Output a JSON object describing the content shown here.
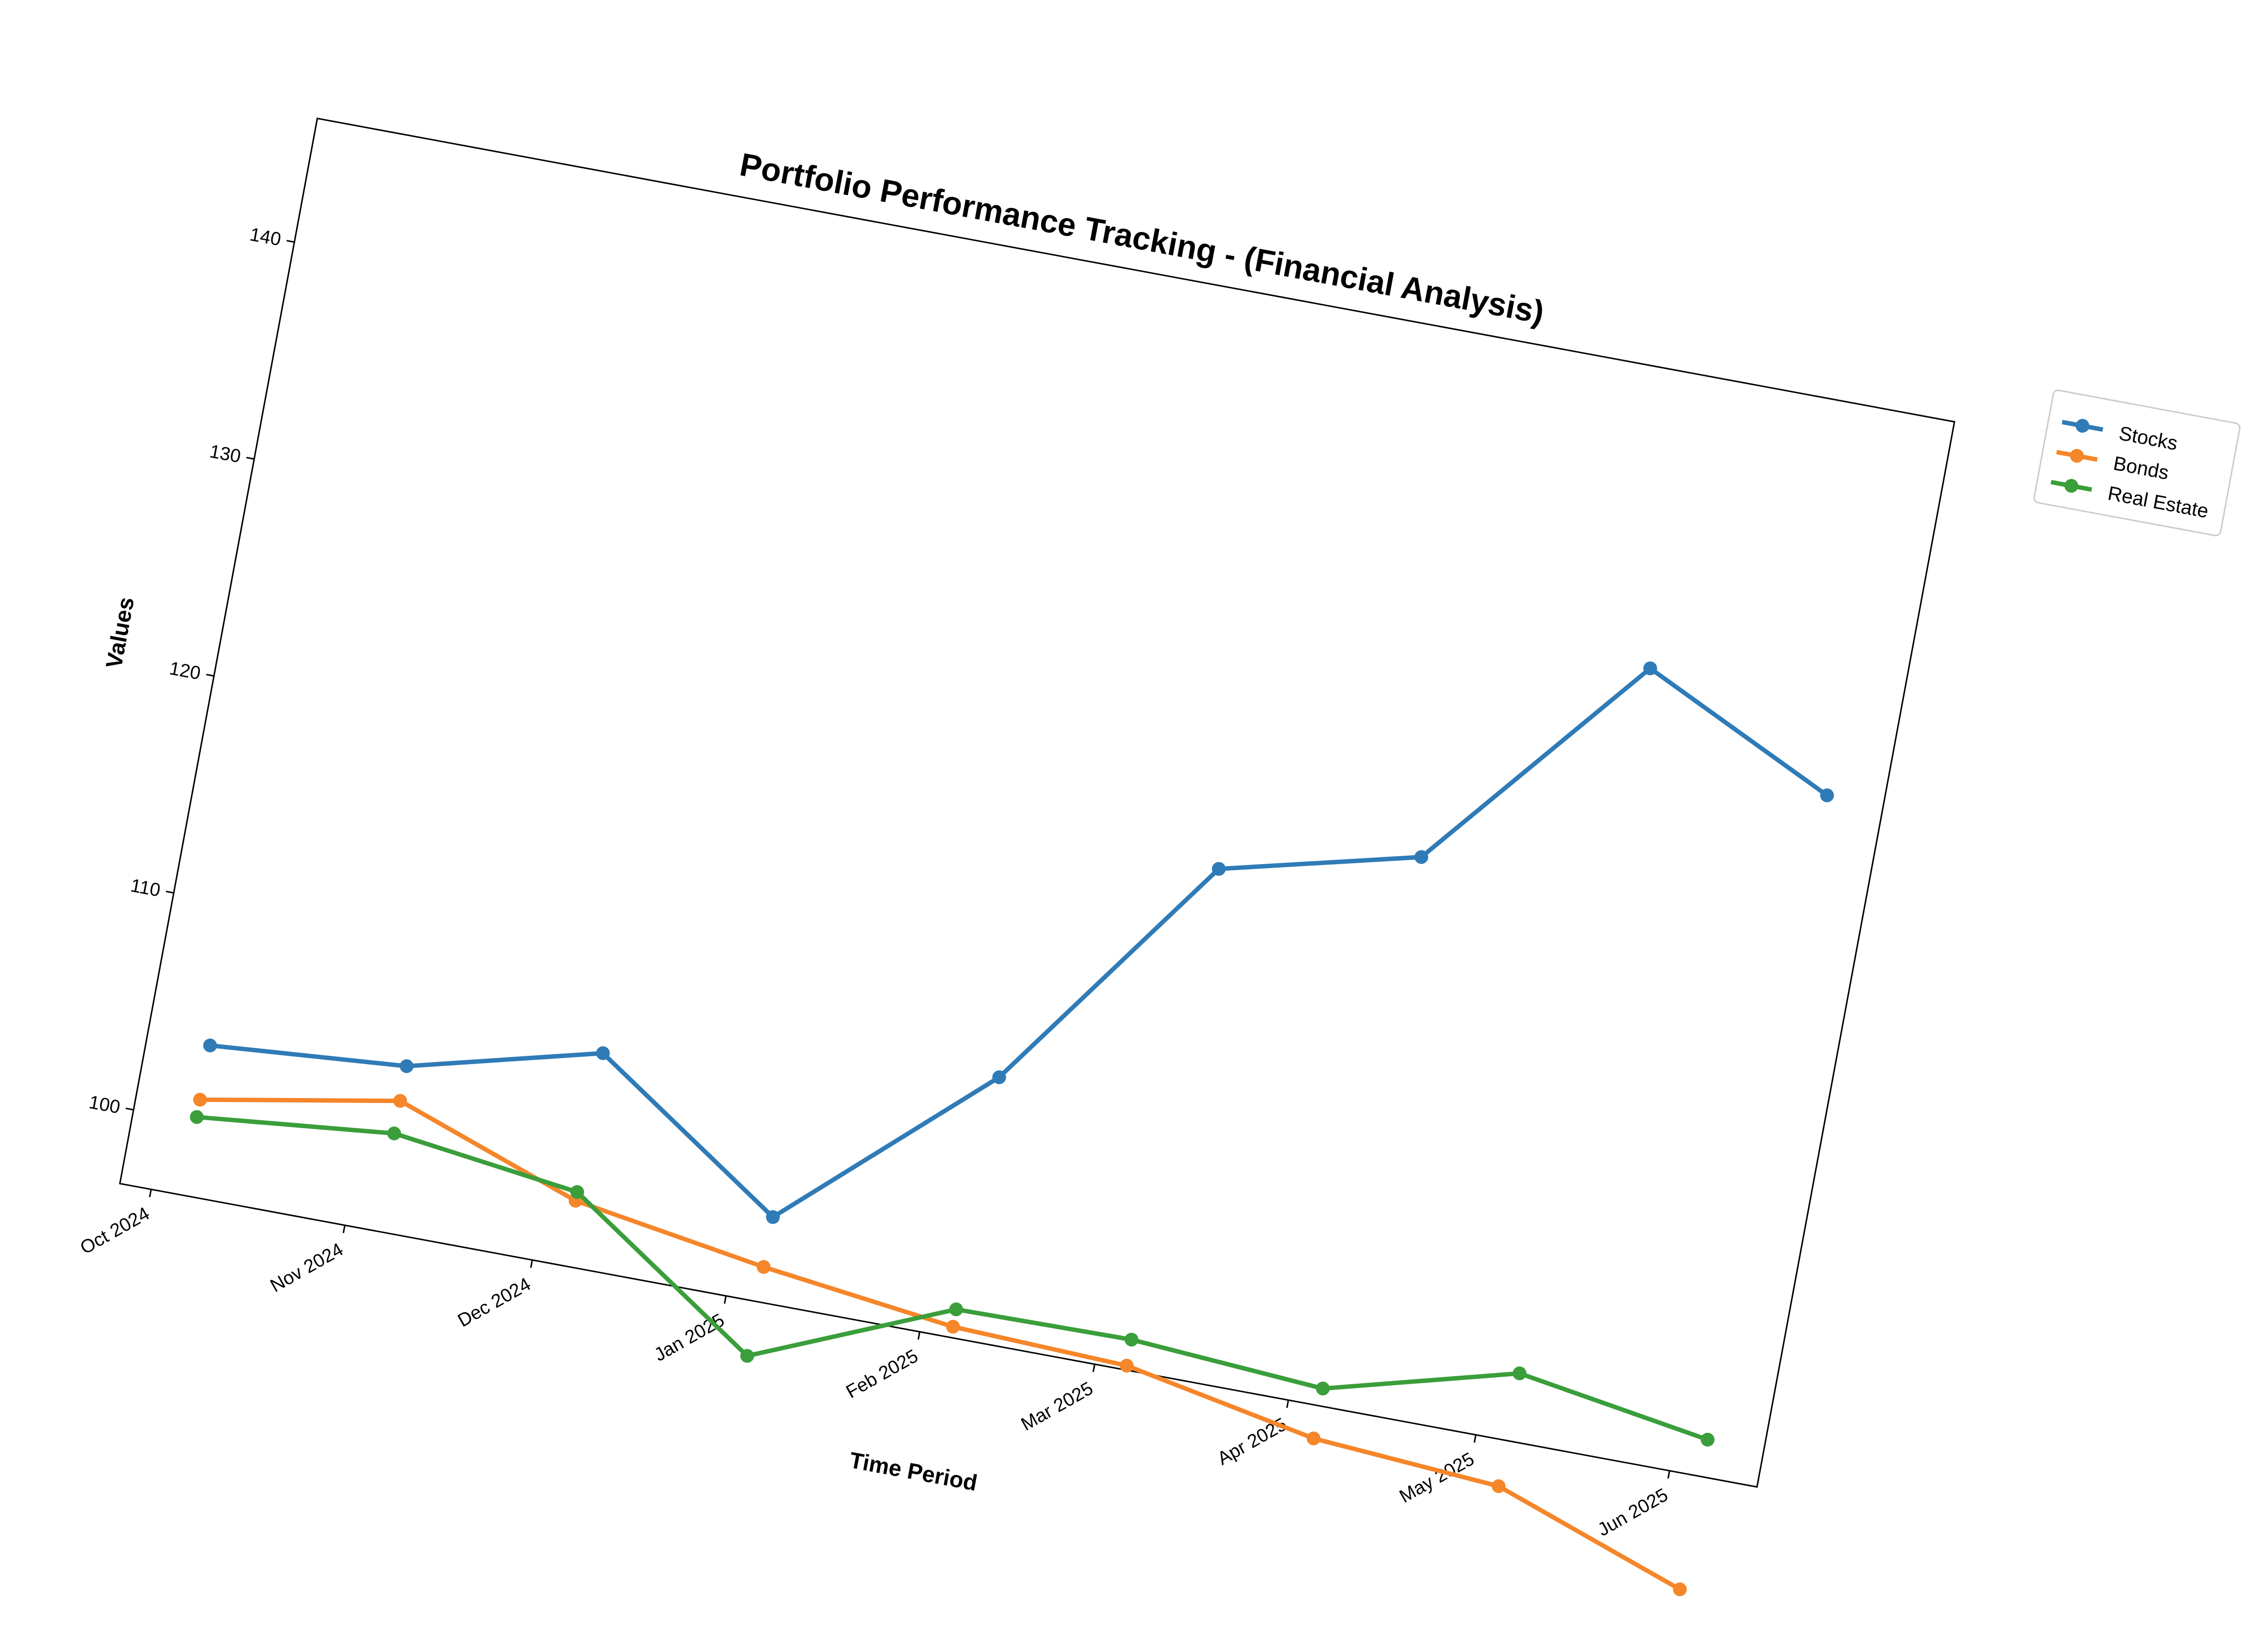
{
  "chart_data": {
    "type": "line",
    "title": "Portfolio Performance Tracking - (Financial Analysis)",
    "xlabel": "Time Period",
    "ylabel": "Values",
    "x_ticks": [
      "Oct 2024",
      "Nov 2024",
      "Dec 2024",
      "Jan 2025",
      "Feb 2025",
      "Mar 2025",
      "Apr 2025",
      "May 2025",
      "Jun 2025"
    ],
    "y_ticks": [
      100,
      110,
      120,
      130,
      140
    ],
    "xlim": [
      "2024-09-26",
      "2025-06-15"
    ],
    "ylim": [
      96.6,
      145.7
    ],
    "grid": false,
    "legend_position": "right, outside plot",
    "rotation_degrees": 10.5,
    "series": [
      {
        "name": "Stocks",
        "color": "#2f7bb7",
        "x": [
          "2024-10-06",
          "2024-11-06",
          "2024-12-06",
          "2025-01-06",
          "2025-02-06",
          "2025-03-06",
          "2025-04-06",
          "2025-05-06",
          "2025-06-06"
        ],
        "y": [
          103.5,
          104.2,
          106.4,
          100.5,
          108.6,
          119.7,
          121.9,
          132.2,
          128.0
        ]
      },
      {
        "name": "Bonds",
        "color": "#f5862a",
        "x": [
          "2024-10-06",
          "2024-11-06",
          "2024-12-06",
          "2025-01-06",
          "2025-02-06",
          "2025-03-06",
          "2025-04-06",
          "2025-05-06",
          "2025-06-06"
        ],
        "y": [
          101.0,
          102.6,
          99.6,
          98.2,
          97.1,
          96.8,
          95.1,
          94.5,
          91.4
        ]
      },
      {
        "name": "Real Estate",
        "color": "#3a9e3a",
        "x": [
          "2024-10-06",
          "2024-11-06",
          "2024-12-06",
          "2025-01-06",
          "2025-02-06",
          "2025-03-06",
          "2025-04-06",
          "2025-05-06",
          "2025-06-06"
        ],
        "y": [
          100.2,
          101.1,
          100.0,
          94.1,
          97.9,
          98.0,
          97.4,
          99.7,
          98.3
        ]
      }
    ]
  }
}
